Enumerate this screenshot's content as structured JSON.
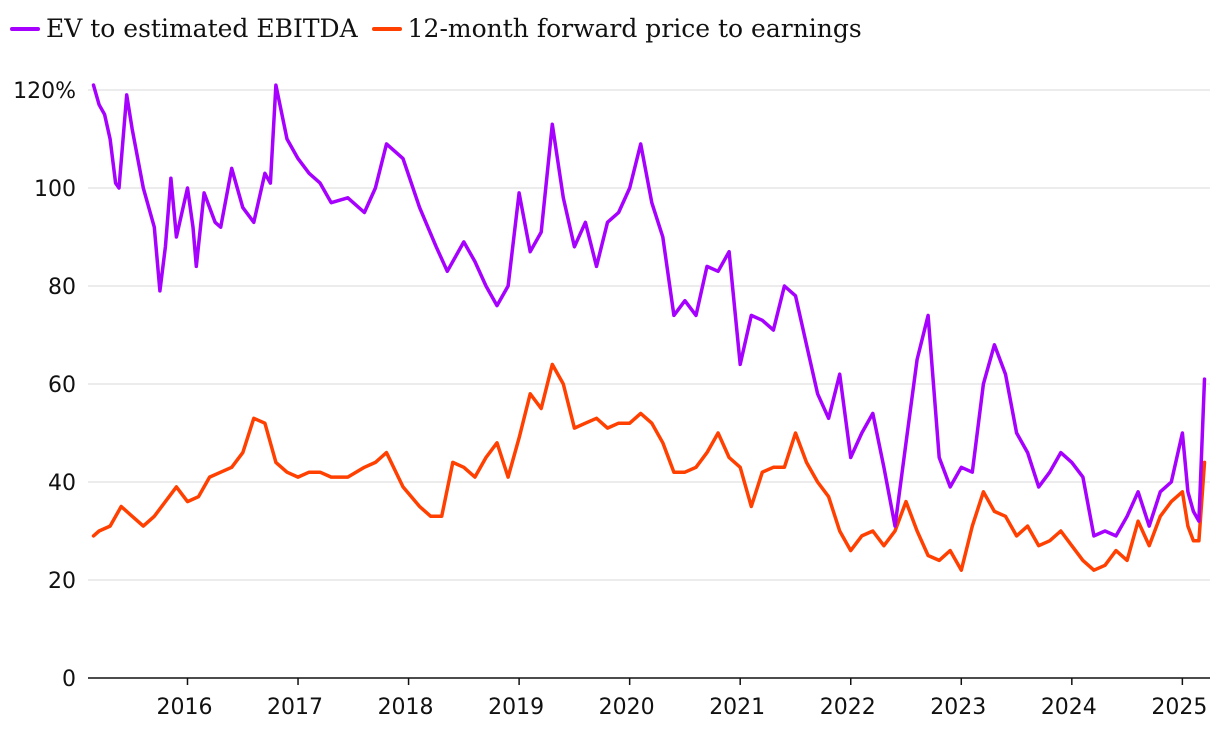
{
  "chart_data": {
    "type": "line",
    "title": "",
    "xlabel": "",
    "ylabel": "",
    "ylim": [
      0,
      120
    ],
    "yticks": [
      0,
      20,
      40,
      60,
      80,
      100,
      120
    ],
    "ytick_labels": [
      "0",
      "20",
      "40",
      "60",
      "80",
      "100",
      "120%"
    ],
    "xlim": [
      2015.1,
      2025.25
    ],
    "xticks": [
      2016,
      2017,
      2018,
      2019,
      2020,
      2021,
      2022,
      2023,
      2024,
      2025
    ],
    "xtick_labels": [
      "2016",
      "2017",
      "2018",
      "2019",
      "2020",
      "2021",
      "2022",
      "2023",
      "2024",
      "2025"
    ],
    "grid": "horizontal",
    "legend": "top-left",
    "series": [
      {
        "name": "EV to estimated EBITDA",
        "color": "#a600ff",
        "x": [
          2015.15,
          2015.2,
          2015.25,
          2015.3,
          2015.35,
          2015.38,
          2015.45,
          2015.5,
          2015.6,
          2015.7,
          2015.75,
          2015.8,
          2015.85,
          2015.9,
          2016.0,
          2016.05,
          2016.08,
          2016.15,
          2016.25,
          2016.3,
          2016.4,
          2016.5,
          2016.6,
          2016.7,
          2016.75,
          2016.8,
          2016.9,
          2017.0,
          2017.1,
          2017.2,
          2017.3,
          2017.45,
          2017.6,
          2017.7,
          2017.8,
          2017.95,
          2018.1,
          2018.25,
          2018.35,
          2018.5,
          2018.6,
          2018.7,
          2018.8,
          2018.9,
          2019.0,
          2019.1,
          2019.2,
          2019.3,
          2019.4,
          2019.5,
          2019.6,
          2019.7,
          2019.8,
          2019.9,
          2020.0,
          2020.1,
          2020.2,
          2020.3,
          2020.4,
          2020.5,
          2020.6,
          2020.7,
          2020.8,
          2020.9,
          2021.0,
          2021.1,
          2021.2,
          2021.3,
          2021.4,
          2021.5,
          2021.6,
          2021.7,
          2021.8,
          2021.9,
          2022.0,
          2022.1,
          2022.2,
          2022.3,
          2022.4,
          2022.5,
          2022.6,
          2022.7,
          2022.8,
          2022.9,
          2023.0,
          2023.1,
          2023.2,
          2023.3,
          2023.4,
          2023.5,
          2023.6,
          2023.7,
          2023.8,
          2023.9,
          2024.0,
          2024.1,
          2024.2,
          2024.3,
          2024.4,
          2024.5,
          2024.6,
          2024.7,
          2024.8,
          2024.9,
          2025.0,
          2025.05,
          2025.1,
          2025.15,
          2025.2
        ],
        "values": [
          121,
          117,
          115,
          110,
          101,
          100,
          119,
          112,
          100,
          92,
          79,
          88,
          102,
          90,
          100,
          92,
          84,
          99,
          93,
          92,
          104,
          96,
          93,
          103,
          101,
          121,
          110,
          106,
          103,
          101,
          97,
          98,
          95,
          100,
          109,
          106,
          96,
          88,
          83,
          89,
          85,
          80,
          76,
          80,
          99,
          87,
          91,
          113,
          98,
          88,
          93,
          84,
          93,
          95,
          100,
          109,
          97,
          90,
          74,
          77,
          74,
          84,
          83,
          87,
          64,
          74,
          73,
          71,
          80,
          78,
          68,
          58,
          53,
          62,
          45,
          50,
          54,
          43,
          31,
          48,
          65,
          74,
          45,
          39,
          43,
          42,
          60,
          68,
          62,
          50,
          46,
          39,
          42,
          46,
          44,
          41,
          29,
          30,
          29,
          33,
          38,
          31,
          38,
          40,
          50,
          38,
          34,
          32,
          61
        ]
      },
      {
        "name": "12-month forward price to earnings",
        "color": "#ff4000",
        "x": [
          2015.15,
          2015.2,
          2015.3,
          2015.4,
          2015.5,
          2015.6,
          2015.7,
          2015.8,
          2015.9,
          2016.0,
          2016.1,
          2016.2,
          2016.3,
          2016.4,
          2016.5,
          2016.6,
          2016.7,
          2016.8,
          2016.9,
          2017.0,
          2017.1,
          2017.2,
          2017.3,
          2017.45,
          2017.6,
          2017.7,
          2017.8,
          2017.95,
          2018.1,
          2018.2,
          2018.3,
          2018.4,
          2018.5,
          2018.6,
          2018.7,
          2018.8,
          2018.9,
          2019.0,
          2019.1,
          2019.2,
          2019.3,
          2019.4,
          2019.5,
          2019.6,
          2019.7,
          2019.8,
          2019.9,
          2020.0,
          2020.1,
          2020.2,
          2020.3,
          2020.4,
          2020.5,
          2020.6,
          2020.7,
          2020.8,
          2020.9,
          2021.0,
          2021.1,
          2021.2,
          2021.3,
          2021.4,
          2021.5,
          2021.6,
          2021.7,
          2021.8,
          2021.9,
          2022.0,
          2022.1,
          2022.2,
          2022.3,
          2022.4,
          2022.5,
          2022.6,
          2022.7,
          2022.8,
          2022.9,
          2023.0,
          2023.1,
          2023.2,
          2023.3,
          2023.4,
          2023.5,
          2023.6,
          2023.7,
          2023.8,
          2023.9,
          2024.0,
          2024.1,
          2024.2,
          2024.3,
          2024.4,
          2024.5,
          2024.6,
          2024.7,
          2024.8,
          2024.9,
          2025.0,
          2025.05,
          2025.1,
          2025.15,
          2025.2
        ],
        "values": [
          29,
          30,
          31,
          35,
          33,
          31,
          33,
          36,
          39,
          36,
          37,
          41,
          42,
          43,
          46,
          53,
          52,
          44,
          42,
          41,
          42,
          42,
          41,
          41,
          43,
          44,
          46,
          39,
          35,
          33,
          33,
          44,
          43,
          41,
          45,
          48,
          41,
          49,
          58,
          55,
          64,
          60,
          51,
          52,
          53,
          51,
          52,
          52,
          54,
          52,
          48,
          42,
          42,
          43,
          46,
          50,
          45,
          43,
          35,
          42,
          43,
          43,
          50,
          44,
          40,
          37,
          30,
          26,
          29,
          30,
          27,
          30,
          36,
          30,
          25,
          24,
          26,
          22,
          31,
          38,
          34,
          33,
          29,
          31,
          27,
          28,
          30,
          27,
          24,
          22,
          23,
          26,
          24,
          32,
          27,
          33,
          36,
          38,
          31,
          28,
          28,
          44
        ]
      }
    ]
  }
}
